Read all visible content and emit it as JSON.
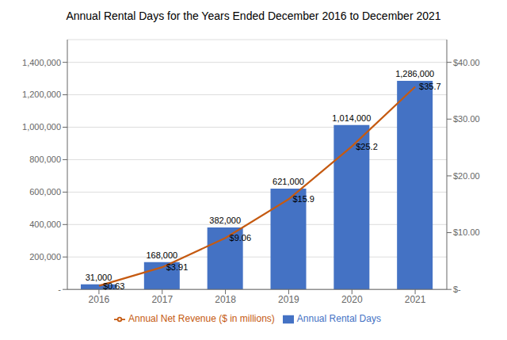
{
  "chart_data": {
    "type": "bar",
    "title": "Annual Rental Days for the Years Ended December 2016 to December 2021",
    "categories": [
      "2016",
      "2017",
      "2018",
      "2019",
      "2020",
      "2021"
    ],
    "series": [
      {
        "name": "Annual Rental Days",
        "type": "bar",
        "color": "#4472C4",
        "values": [
          31000,
          168000,
          382000,
          621000,
          1014000,
          1286000
        ],
        "value_labels": [
          "31,000",
          "168,000",
          "382,000",
          "621,000",
          "1,014,000",
          "1,286,000"
        ]
      },
      {
        "name": "Annual Net Revenue ($ in millions)",
        "type": "line",
        "color": "#C55A11",
        "axis": "y2",
        "values": [
          0.63,
          3.91,
          9.06,
          15.9,
          25.2,
          35.7
        ],
        "value_labels": [
          "$0.63",
          "$3.91",
          "$9.06",
          "$15.9",
          "$25.2",
          "$35.7"
        ]
      }
    ],
    "ylim": [
      0,
      1540000
    ],
    "yticks": [
      {
        "value": 0,
        "label": "-"
      },
      {
        "value": 200000,
        "label": "200,000"
      },
      {
        "value": 400000,
        "label": "400,000"
      },
      {
        "value": 600000,
        "label": "600,000"
      },
      {
        "value": 800000,
        "label": "800,000"
      },
      {
        "value": 1000000,
        "label": "1,000,000"
      },
      {
        "value": 1200000,
        "label": "1,200,000"
      },
      {
        "value": 1400000,
        "label": "1,400,000"
      }
    ],
    "y2lim": [
      0,
      44.0
    ],
    "y2ticks": [
      {
        "value": 0,
        "label": "$-"
      },
      {
        "value": 10,
        "label": "$10.00"
      },
      {
        "value": 20,
        "label": "$20.00"
      },
      {
        "value": 30,
        "label": "$30.00"
      },
      {
        "value": 40,
        "label": "$40.00"
      }
    ],
    "grid": true,
    "legend": "bottom",
    "data_labels": true
  }
}
